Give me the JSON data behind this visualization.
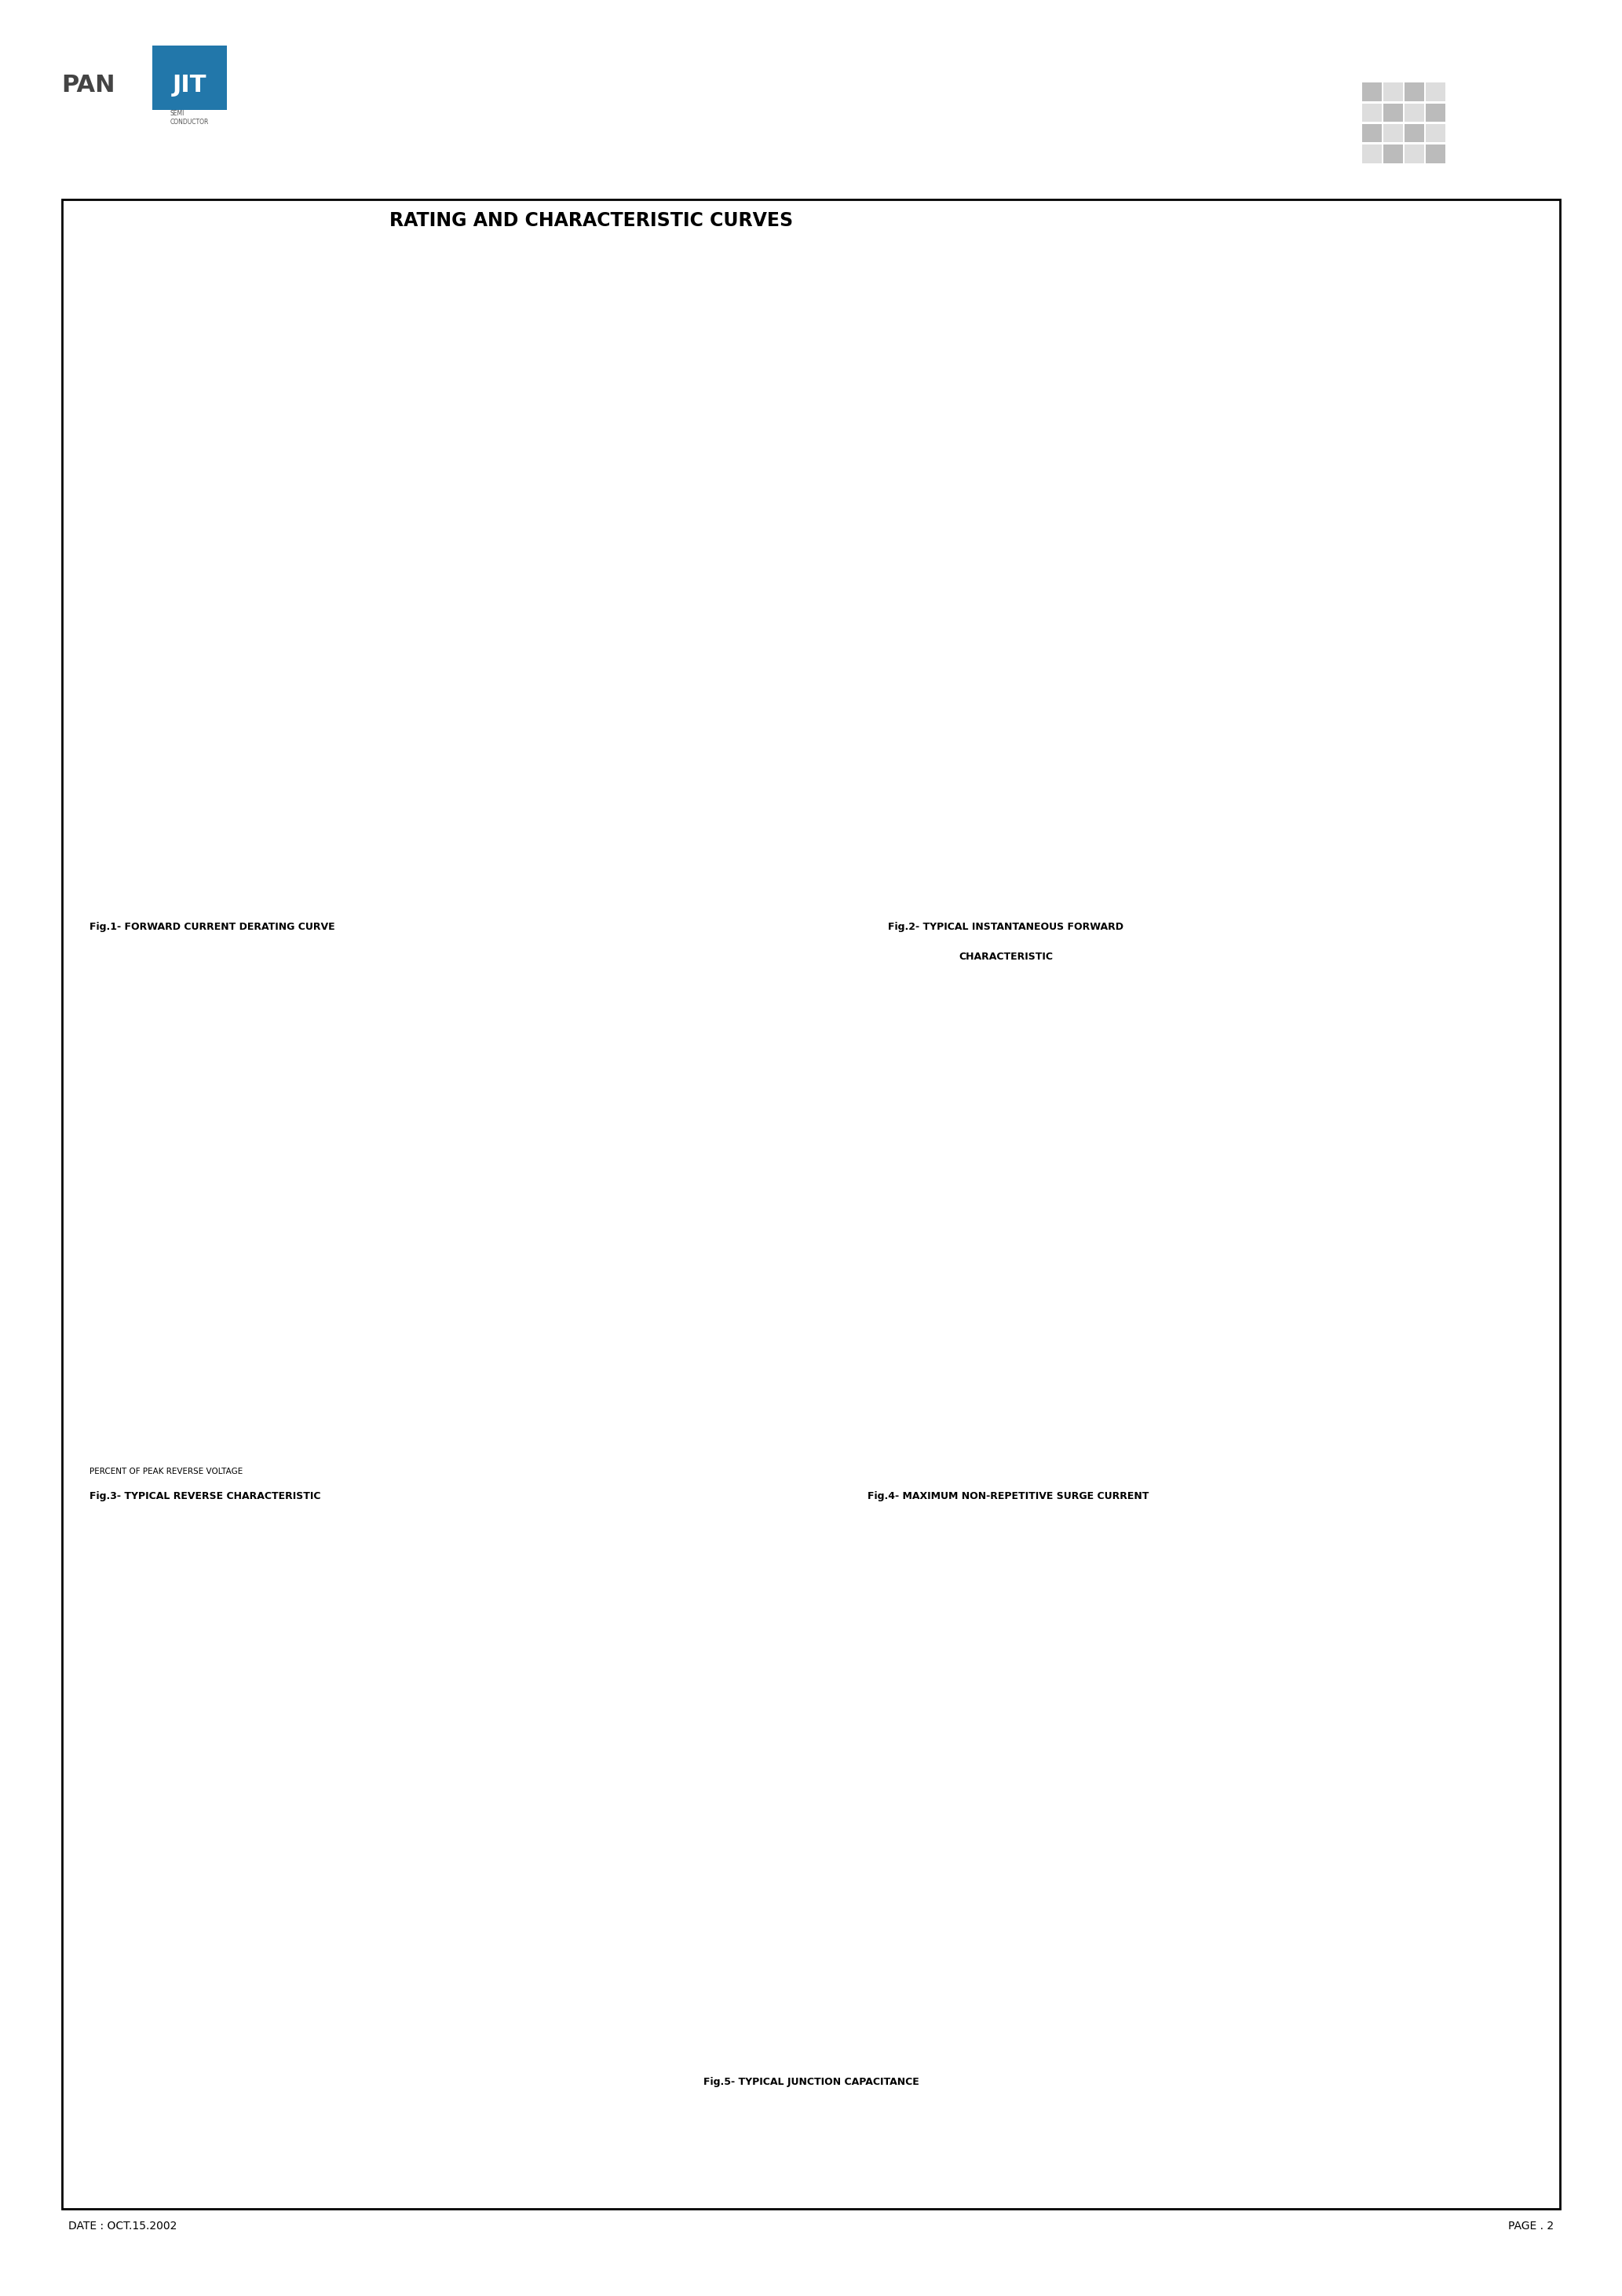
{
  "page_title": "RATING AND CHARACTERISTIC CURVES",
  "fig1_title": "Fig.1- FORWARD CURRENT DERATING CURVE",
  "fig2_title_line1": "Fig.2- TYPICAL INSTANTANEOUS FORWARD",
  "fig2_title_line2": "CHARACTERISTIC",
  "fig3_title": "Fig.3- TYPICAL REVERSE CHARACTERISTIC",
  "fig4_title": "Fig.4- MAXIMUM NON-REPETITIVE SURGE CURRENT",
  "fig5_title": "Fig.5- TYPICAL JUNCTION CAPACITANCE",
  "header_date": "DATE : OCT.15.2002",
  "header_page": "PAGE . 2",
  "bg_color": "#ffffff"
}
